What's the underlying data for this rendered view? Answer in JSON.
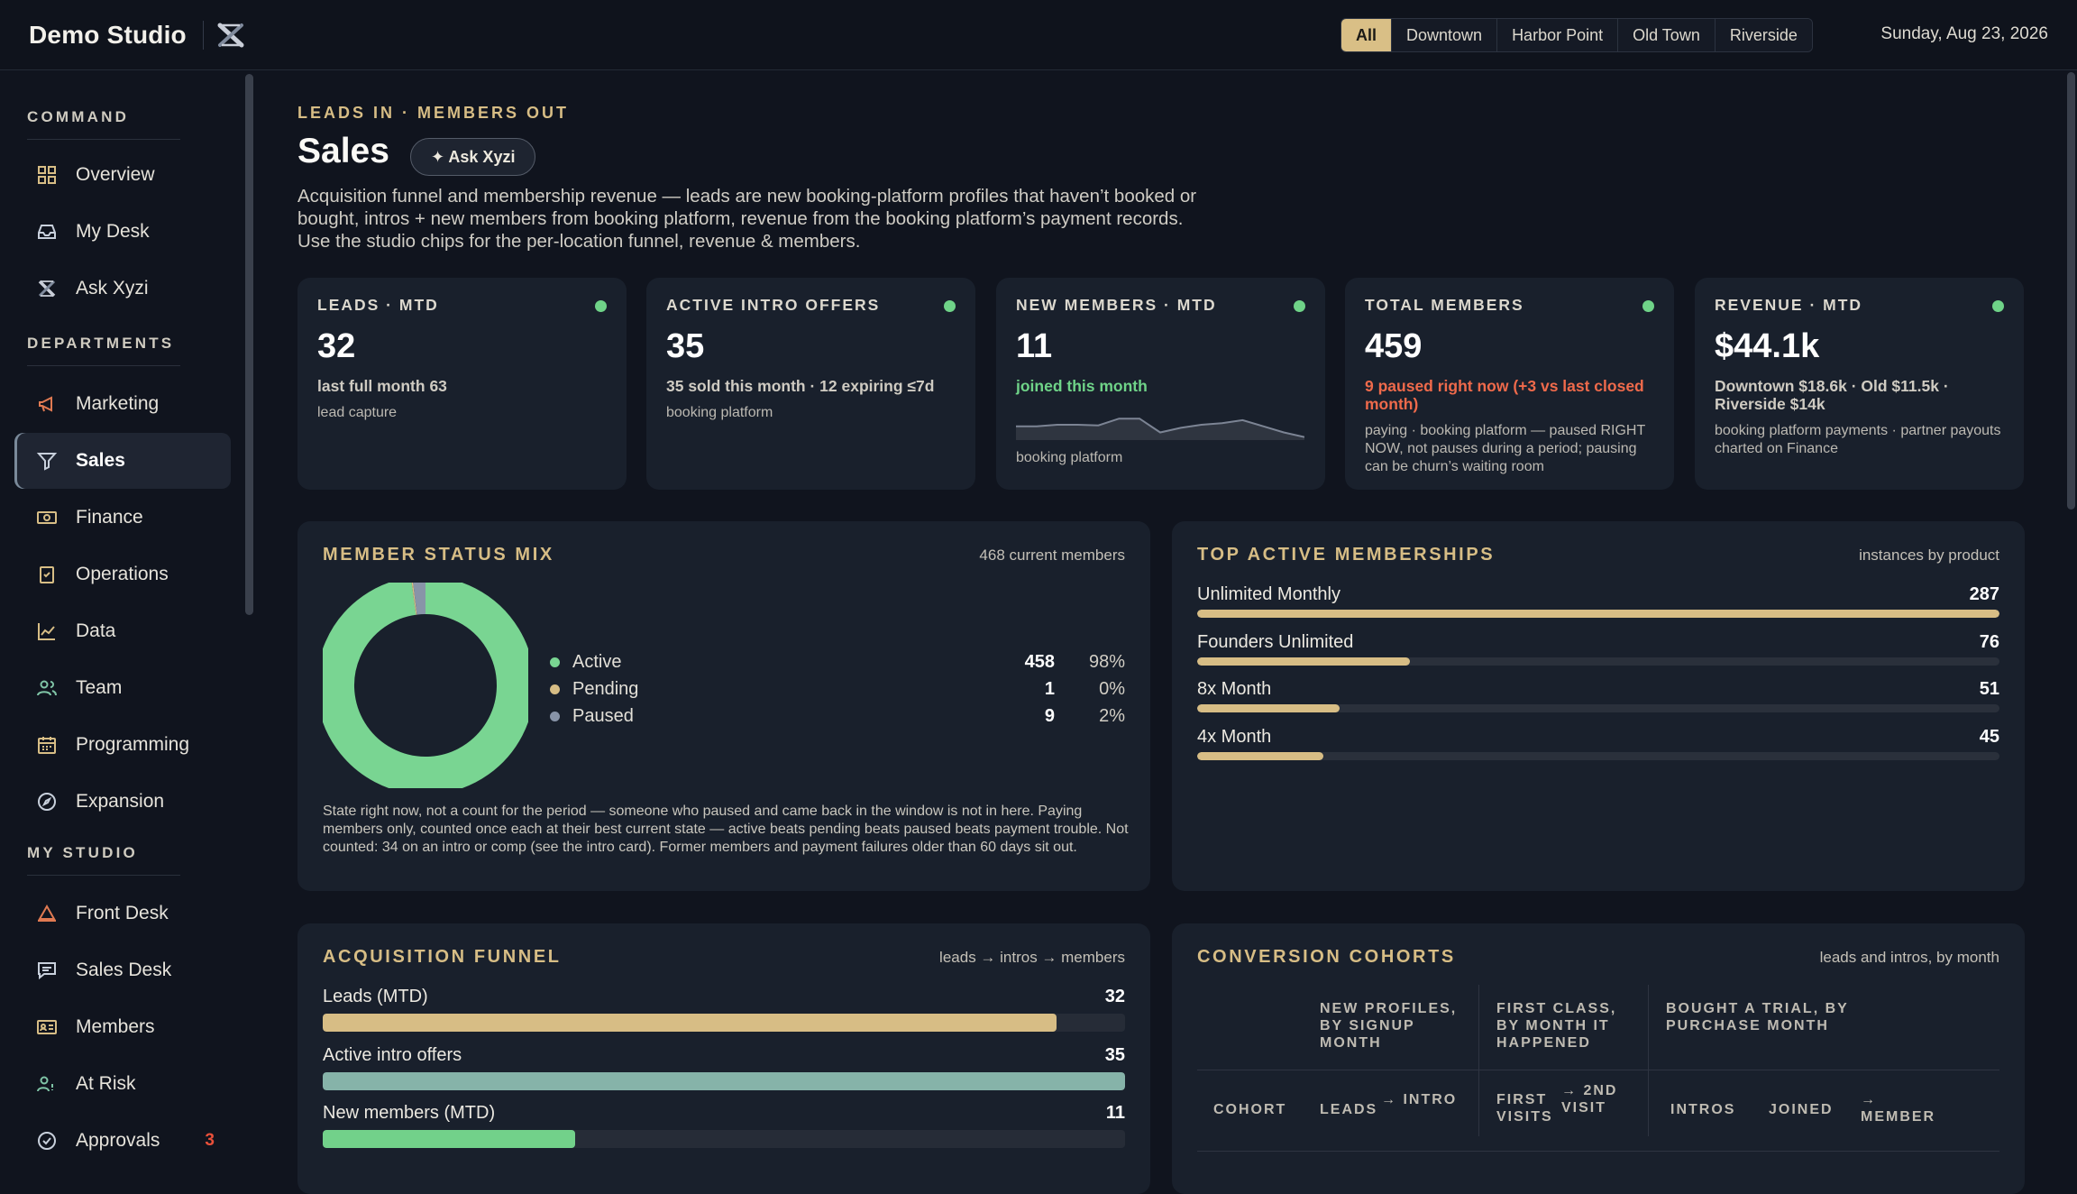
{
  "app": {
    "name": "Demo Studio",
    "logo_icon": "x-logo-icon"
  },
  "locations": {
    "chips": [
      {
        "label": "All",
        "active": true
      },
      {
        "label": "Downtown",
        "active": false
      },
      {
        "label": "Harbor Point",
        "active": false
      },
      {
        "label": "Old Town",
        "active": false
      },
      {
        "label": "Riverside",
        "active": false
      }
    ],
    "date": "Sunday, Aug 23, 2026"
  },
  "sidebar": {
    "sections": [
      {
        "title": "COMMAND",
        "items": [
          {
            "label": "Overview",
            "icon": "grid-icon"
          },
          {
            "label": "My Desk",
            "icon": "inbox-icon"
          },
          {
            "label": "Ask Xyzi",
            "icon": "x-logo-icon"
          }
        ]
      },
      {
        "title": "DEPARTMENTS",
        "items": [
          {
            "label": "Marketing",
            "icon": "megaphone-icon"
          },
          {
            "label": "Sales",
            "icon": "funnel-icon",
            "active": true
          },
          {
            "label": "Finance",
            "icon": "banknote-icon"
          },
          {
            "label": "Operations",
            "icon": "clipboard-check-icon"
          },
          {
            "label": "Data",
            "icon": "line-chart-icon"
          },
          {
            "label": "Team",
            "icon": "users-icon"
          },
          {
            "label": "Programming",
            "icon": "calendar-icon"
          },
          {
            "label": "Expansion",
            "icon": "compass-icon"
          }
        ]
      },
      {
        "title": "MY STUDIO",
        "items": [
          {
            "label": "Front Desk",
            "icon": "bell-icon"
          },
          {
            "label": "Sales Desk",
            "icon": "message-icon"
          },
          {
            "label": "Members",
            "icon": "id-card-icon"
          },
          {
            "label": "At Risk",
            "icon": "user-alert-icon"
          },
          {
            "label": "Approvals",
            "icon": "check-circle-icon",
            "badge": "3"
          }
        ]
      }
    ]
  },
  "page": {
    "kicker": "LEADS IN · MEMBERS OUT",
    "title": "Sales",
    "ask_button": "✦ Ask Xyzi",
    "description": "Acquisition funnel and membership revenue — leads are new booking-platform profiles that haven’t booked or bought, intros + new members from booking platform, revenue from the booking platform’s payment records. Use the studio chips for the per-location funnel, revenue & members."
  },
  "kpis": [
    {
      "label": "LEADS · MTD",
      "value": "32",
      "sub": "last full month 63",
      "sub_tone": "neutral",
      "note": "lead capture",
      "status_color": "#6fd388"
    },
    {
      "label": "ACTIVE INTRO OFFERS",
      "value": "35",
      "sub": "35 sold this month · 12 expiring ≤7d",
      "sub_tone": "neutral",
      "note": "booking platform",
      "status_color": "#6fd388"
    },
    {
      "label": "NEW MEMBERS · MTD",
      "value": "11",
      "sub": "joined this month",
      "sub_tone": "green",
      "note": "booking platform",
      "status_color": "#6fd388",
      "sparkline": [
        0.55,
        0.55,
        0.5,
        0.5,
        0.52,
        0.3,
        0.3,
        0.75,
        0.6,
        0.5,
        0.45,
        0.35,
        0.55,
        0.75,
        0.9
      ]
    },
    {
      "label": "TOTAL MEMBERS",
      "value": "459",
      "sub": "9 paused right now (+3 vs last closed month)",
      "sub_tone": "red",
      "note": "paying · booking platform — paused RIGHT NOW, not pauses during a period; pausing can be churn’s waiting room",
      "status_color": "#6fd388"
    },
    {
      "label": "REVENUE · MTD",
      "value": "$44.1k",
      "sub": "Downtown $18.6k · Old $11.5k · Riverside $14k",
      "sub_tone": "neutral",
      "note": "booking platform payments · partner payouts charted on Finance",
      "status_color": "#6fd388"
    }
  ],
  "member_status": {
    "title": "MEMBER STATUS MIX",
    "right_label": "468 current members",
    "rows": [
      {
        "label": "Active",
        "count": "458",
        "pct": "98%",
        "value": 458,
        "color": "#79d592"
      },
      {
        "label": "Pending",
        "count": "1",
        "pct": "0%",
        "value": 1,
        "color": "#d7bd85"
      },
      {
        "label": "Paused",
        "count": "9",
        "pct": "2%",
        "value": 9,
        "color": "#8894a8"
      }
    ],
    "note": "State right now, not a count for the period — someone who paused and came back in the window is not in here. Paying members only, counted once each at their best current state — active beats pending beats paused beats payment trouble. Not counted: 34 on an intro or comp (see the intro card). Former members and payment failures older than 60 days sit out."
  },
  "top_memberships": {
    "title": "TOP ACTIVE MEMBERSHIPS",
    "right_label": "instances by product",
    "max": 287,
    "rows": [
      {
        "label": "Unlimited Monthly",
        "value": 287
      },
      {
        "label": "Founders Unlimited",
        "value": 76
      },
      {
        "label": "8x Month",
        "value": 51
      },
      {
        "label": "4x Month",
        "value": 45
      }
    ]
  },
  "funnel": {
    "title": "ACQUISITION FUNNEL",
    "right_label": "leads → intros → members",
    "max": 35,
    "rows": [
      {
        "label": "Leads (MTD)",
        "value": 32,
        "color": "#d7bd85"
      },
      {
        "label": "Active intro offers",
        "value": 35,
        "color": "#86b3a9"
      },
      {
        "label": "New members (MTD)",
        "value": 11,
        "color": "#72d18a"
      }
    ]
  },
  "cohorts": {
    "title": "CONVERSION COHORTS",
    "right_label": "leads and intros, by month",
    "groups": [
      "NEW PROFILES, BY SIGNUP MONTH",
      "FIRST CLASS, BY MONTH IT HAPPENED",
      "BOUGHT A TRIAL, BY PURCHASE MONTH"
    ],
    "columns": [
      "COHORT",
      "LEADS",
      "→ INTRO",
      "FIRST VISITS",
      "→ 2ND VISIT",
      "INTROS",
      "JOINED",
      "→ MEMBER"
    ]
  }
}
